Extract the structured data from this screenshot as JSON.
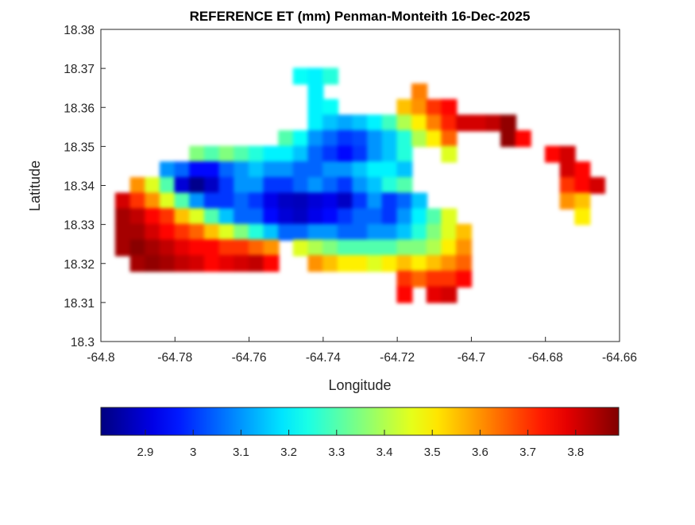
{
  "chart_data": {
    "type": "heatmap",
    "title": "REFERENCE ET (mm) Penman-Monteith 16-Dec-2025",
    "xlabel": "Longitude",
    "ylabel": "Latitude",
    "xlim": [
      -64.8,
      -64.66
    ],
    "ylim": [
      18.3,
      18.38
    ],
    "xticks": [
      "-64.8",
      "-64.78",
      "-64.76",
      "-64.74",
      "-64.72",
      "-64.7",
      "-64.68",
      "-64.66"
    ],
    "yticks": [
      "18.3",
      "18.31",
      "18.32",
      "18.33",
      "18.34",
      "18.35",
      "18.36",
      "18.37",
      "18.38"
    ],
    "colormap": "jet",
    "clim": [
      2.807,
      3.89
    ],
    "colorbar": {
      "placement": "bottom",
      "ticks": [
        "2.9",
        "3",
        "3.1",
        "3.2",
        "3.3",
        "3.4",
        "3.5",
        "3.6",
        "3.7",
        "3.8"
      ]
    },
    "grid": false,
    "lon_step": 0.004,
    "lat_step": 0.004,
    "rows": [
      {
        "lat": 18.368,
        "segments": [
          {
            "lon0": -64.746,
            "values": [
              3.22,
              3.2,
              3.25
            ]
          }
        ]
      },
      {
        "lat": 18.364,
        "segments": [
          {
            "lon0": -64.742,
            "values": [
              3.2
            ]
          },
          {
            "lon0": -64.714,
            "values": [
              3.62
            ]
          }
        ]
      },
      {
        "lat": 18.36,
        "segments": [
          {
            "lon0": -64.742,
            "values": [
              3.2,
              3.22
            ]
          },
          {
            "lon0": -64.718,
            "values": [
              3.55,
              3.6,
              3.7,
              3.75
            ]
          }
        ]
      },
      {
        "lat": 18.356,
        "segments": [
          {
            "lon0": -64.742,
            "values": [
              3.2,
              3.15,
              3.12,
              3.15,
              3.2,
              3.28,
              3.4,
              3.5,
              3.62,
              3.72,
              3.8,
              3.8,
              3.82,
              3.87
            ]
          }
        ]
      },
      {
        "lat": 18.352,
        "segments": [
          {
            "lon0": -64.75,
            "values": [
              3.3,
              3.22,
              3.1,
              3.05,
              3.0,
              3.02,
              3.1,
              3.15,
              3.25,
              3.4,
              3.5,
              3.65
            ]
          },
          {
            "lon0": -64.69,
            "values": [
              3.87,
              3.75
            ]
          }
        ]
      },
      {
        "lat": 18.348,
        "segments": [
          {
            "lon0": -64.774,
            "values": [
              3.35,
              3.3,
              3.35,
              3.3,
              3.25,
              3.2,
              3.2,
              3.15,
              3.05,
              3.0,
              2.95,
              3.0,
              3.1,
              3.15,
              3.25
            ]
          },
          {
            "lon0": -64.706,
            "values": [
              3.45
            ]
          },
          {
            "lon0": -64.678,
            "values": [
              3.75,
              3.8
            ]
          }
        ]
      },
      {
        "lat": 18.344,
        "segments": [
          {
            "lon0": -64.782,
            "values": [
              3.1,
              3.05,
              2.95,
              2.95,
              3.05,
              3.1,
              3.15,
              3.1,
              3.1,
              3.05,
              3.05,
              3.1,
              3.1,
              3.15,
              3.2,
              3.2,
              3.15
            ]
          },
          {
            "lon0": -64.674,
            "values": [
              3.8,
              3.75
            ]
          }
        ]
      },
      {
        "lat": 18.34,
        "segments": [
          {
            "lon0": -64.79,
            "values": [
              3.6,
              3.45,
              3.3,
              2.9,
              2.82,
              2.88,
              3.0,
              3.1,
              3.1,
              3.0,
              3.0,
              3.05,
              3.1,
              3.05,
              3.0,
              3.1,
              3.15,
              3.25,
              3.3
            ]
          },
          {
            "lon0": -64.674,
            "values": [
              3.7,
              3.75,
              3.8
            ]
          }
        ]
      },
      {
        "lat": 18.336,
        "segments": [
          {
            "lon0": -64.794,
            "values": [
              3.8,
              3.7,
              3.6,
              3.45,
              3.3,
              3.1,
              3.0,
              3.0,
              3.05,
              3.0,
              2.92,
              2.88,
              2.87,
              2.9,
              2.92,
              2.88,
              3.0,
              3.1,
              3.0,
              3.05,
              3.15
            ]
          },
          {
            "lon0": -64.674,
            "values": [
              3.6,
              3.55
            ]
          }
        ]
      },
      {
        "lat": 18.332,
        "segments": [
          {
            "lon0": -64.794,
            "values": [
              3.85,
              3.82,
              3.75,
              3.7,
              3.55,
              3.45,
              3.3,
              3.15,
              3.05,
              3.05,
              2.95,
              2.9,
              2.88,
              2.92,
              2.95,
              3.0,
              3.05,
              3.05,
              3.0,
              3.1,
              3.2,
              3.3,
              3.45
            ]
          },
          {
            "lon0": -64.67,
            "values": [
              3.5
            ]
          }
        ]
      },
      {
        "lat": 18.328,
        "segments": [
          {
            "lon0": -64.794,
            "values": [
              3.85,
              3.85,
              3.8,
              3.75,
              3.7,
              3.65,
              3.55,
              3.45,
              3.35,
              3.25,
              3.15,
              3.05,
              3.05,
              3.1,
              3.1,
              3.05,
              3.05,
              3.1,
              3.1,
              3.15,
              3.25,
              3.35,
              3.45,
              3.55
            ]
          }
        ]
      },
      {
        "lat": 18.324,
        "segments": [
          {
            "lon0": -64.794,
            "values": [
              3.85,
              3.88,
              3.85,
              3.82,
              3.78,
              3.75,
              3.75,
              3.7,
              3.7,
              3.65,
              3.6
            ]
          },
          {
            "lon0": -64.746,
            "values": [
              3.45,
              3.4,
              3.35,
              3.3,
              3.3,
              3.3,
              3.3,
              3.35,
              3.35,
              3.4,
              3.5,
              3.6
            ]
          }
        ]
      },
      {
        "lat": 18.32,
        "segments": [
          {
            "lon0": -64.79,
            "values": [
              3.85,
              3.87,
              3.85,
              3.82,
              3.8,
              3.75,
              3.78,
              3.8,
              3.82,
              3.75
            ]
          },
          {
            "lon0": -64.742,
            "values": [
              3.6,
              3.55,
              3.5,
              3.5,
              3.45,
              3.5,
              3.55,
              3.5,
              3.55,
              3.6,
              3.65
            ]
          }
        ]
      },
      {
        "lat": 18.316,
        "segments": [
          {
            "lon0": -64.718,
            "values": [
              3.7,
              3.65,
              3.7,
              3.7,
              3.75
            ]
          }
        ]
      },
      {
        "lat": 18.312,
        "segments": [
          {
            "lon0": -64.718,
            "values": [
              3.75
            ]
          },
          {
            "lon0": -64.71,
            "values": [
              3.78,
              3.8
            ]
          }
        ]
      }
    ]
  }
}
